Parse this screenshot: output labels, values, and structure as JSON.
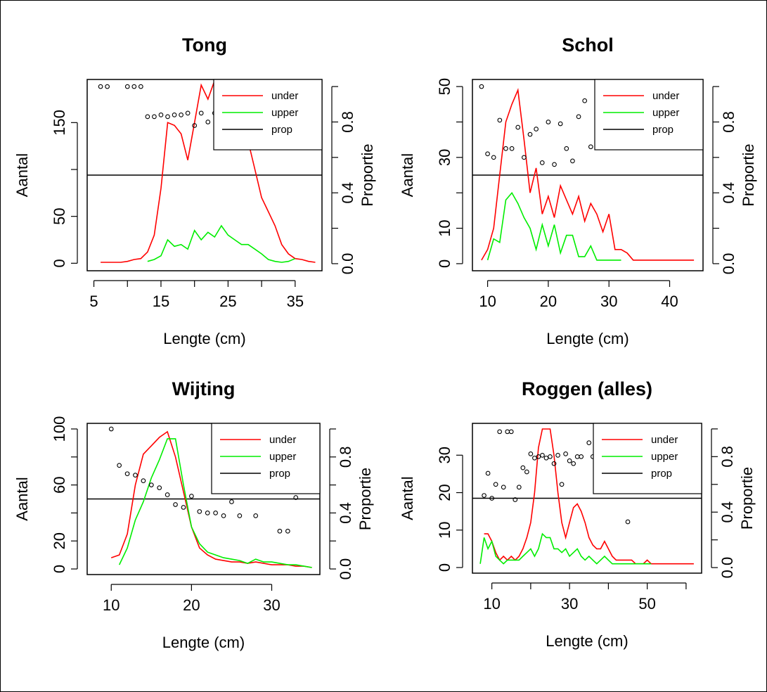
{
  "chart_data": [
    {
      "type": "line",
      "title": "Tong",
      "xlabel": "Lengte (cm)",
      "ylabel": "Aantal",
      "y2label": "Proportie",
      "xlim": [
        4,
        39
      ],
      "ylim": [
        -8,
        196
      ],
      "y2lim": [
        -0.04,
        1.04
      ],
      "xticks": [
        5,
        15,
        25,
        35
      ],
      "xminor": [
        10,
        20,
        30
      ],
      "yticks": [
        0,
        50,
        150
      ],
      "ymajor": [
        0,
        50,
        100,
        150
      ],
      "y2ticks": [
        0.0,
        0.4,
        0.8
      ],
      "y2major": [
        0.0,
        0.2,
        0.4,
        0.6,
        0.8,
        1.0
      ],
      "prop_line": 0.5,
      "legend": {
        "position": "top-right",
        "entries": [
          {
            "name": "under",
            "color": "#ff0000"
          },
          {
            "name": "upper",
            "color": "#00ee00"
          },
          {
            "name": "prop",
            "color": "#000000"
          }
        ]
      },
      "series": [
        {
          "name": "under",
          "color": "#ff0000",
          "x": [
            6,
            7,
            8,
            9,
            10,
            11,
            12,
            13,
            14,
            15,
            16,
            17,
            18,
            19,
            20,
            21,
            22,
            23,
            24,
            25,
            26,
            27,
            28,
            29,
            30,
            31,
            32,
            33,
            34,
            35,
            36,
            37,
            38
          ],
          "y": [
            1,
            1,
            1,
            1,
            2,
            4,
            5,
            12,
            30,
            80,
            150,
            147,
            138,
            110,
            150,
            190,
            175,
            195,
            193,
            185,
            165,
            150,
            130,
            100,
            70,
            55,
            40,
            20,
            10,
            5,
            4,
            2,
            1
          ]
        },
        {
          "name": "upper",
          "color": "#00ee00",
          "x": [
            13,
            14,
            15,
            16,
            17,
            18,
            19,
            20,
            21,
            22,
            23,
            24,
            25,
            26,
            27,
            28,
            29,
            30,
            31,
            32,
            33,
            34,
            35
          ],
          "y": [
            2,
            4,
            8,
            25,
            18,
            20,
            15,
            35,
            25,
            33,
            28,
            40,
            30,
            25,
            20,
            20,
            15,
            10,
            4,
            2,
            1,
            2,
            5
          ]
        }
      ],
      "points": {
        "x": [
          6,
          7,
          10,
          11,
          12,
          13,
          14,
          15,
          16,
          17,
          18,
          19,
          20,
          21,
          22,
          23,
          24
        ],
        "y": [
          1.0,
          1.0,
          1.0,
          1.0,
          1.0,
          0.83,
          0.83,
          0.84,
          0.83,
          0.84,
          0.84,
          0.85,
          0.78,
          0.85,
          0.8,
          0.85,
          0.93
        ]
      }
    },
    {
      "type": "line",
      "title": "Schol",
      "xlabel": "Lengte (cm)",
      "ylabel": "Aantal",
      "y2label": "Proportie",
      "xlim": [
        7.5,
        45.5
      ],
      "ylim": [
        -2,
        52
      ],
      "y2lim": [
        -0.04,
        1.04
      ],
      "xticks": [
        10,
        20,
        30,
        40
      ],
      "yticks": [
        0,
        10,
        30,
        50
      ],
      "ymajor": [
        0,
        10,
        20,
        30,
        40,
        50
      ],
      "y2ticks": [
        0.0,
        0.4,
        0.8
      ],
      "y2major": [
        0.0,
        0.2,
        0.4,
        0.6,
        0.8,
        1.0
      ],
      "prop_line": 0.5,
      "legend": {
        "position": "top-right",
        "entries": [
          {
            "name": "under",
            "color": "#ff0000"
          },
          {
            "name": "upper",
            "color": "#00ee00"
          },
          {
            "name": "prop",
            "color": "#000000"
          }
        ]
      },
      "series": [
        {
          "name": "under",
          "color": "#ff0000",
          "x": [
            9,
            10,
            11,
            12,
            13,
            14,
            15,
            16,
            17,
            18,
            19,
            20,
            21,
            22,
            23,
            24,
            25,
            26,
            27,
            28,
            29,
            30,
            31,
            32,
            33,
            34,
            35,
            36,
            37,
            38,
            39,
            40,
            41,
            42,
            43,
            44
          ],
          "y": [
            1,
            4,
            10,
            25,
            40,
            45,
            49,
            35,
            20,
            27,
            14,
            19,
            13,
            22,
            18,
            14,
            19,
            12,
            17,
            14,
            9,
            14,
            4,
            4,
            3,
            1,
            1,
            1,
            1,
            1,
            1,
            1,
            1,
            1,
            1,
            1
          ]
        },
        {
          "name": "upper",
          "color": "#00ee00",
          "x": [
            10,
            11,
            12,
            13,
            14,
            15,
            16,
            17,
            18,
            19,
            20,
            21,
            22,
            23,
            24,
            25,
            26,
            27,
            28,
            29,
            30,
            31,
            32
          ],
          "y": [
            1,
            7,
            6,
            18,
            20,
            17,
            13,
            10,
            4,
            11,
            5,
            11,
            3,
            8,
            8,
            2,
            2,
            5,
            1,
            1,
            1,
            1,
            1
          ]
        }
      ],
      "points": {
        "x": [
          9,
          10,
          11,
          12,
          13,
          14,
          15,
          16,
          17,
          18,
          19,
          20,
          21,
          22,
          23,
          24,
          25,
          26,
          27,
          28
        ],
        "y": [
          1.0,
          0.62,
          0.6,
          0.81,
          0.65,
          0.65,
          0.77,
          0.6,
          0.73,
          0.76,
          0.57,
          0.8,
          0.56,
          0.79,
          0.65,
          0.58,
          0.83,
          0.92,
          0.66,
          0.83
        ]
      }
    },
    {
      "type": "line",
      "title": "Wijting",
      "xlabel": "Lengte (cm)",
      "ylabel": "Aantal",
      "y2label": "Proportie",
      "xlim": [
        7,
        36
      ],
      "ylim": [
        -4,
        104
      ],
      "y2lim": [
        -0.04,
        1.04
      ],
      "xticks": [
        10,
        20,
        30
      ],
      "yticks": [
        0,
        20,
        60,
        100
      ],
      "ymajor": [
        0,
        20,
        40,
        60,
        80,
        100
      ],
      "y2ticks": [
        0.0,
        0.4,
        0.8
      ],
      "y2major": [
        0.0,
        0.2,
        0.4,
        0.6,
        0.8,
        1.0
      ],
      "prop_line": 0.5,
      "legend": {
        "position": "top-right",
        "entries": [
          {
            "name": "under",
            "color": "#ff0000"
          },
          {
            "name": "upper",
            "color": "#00ee00"
          },
          {
            "name": "prop",
            "color": "#000000"
          }
        ]
      },
      "series": [
        {
          "name": "under",
          "color": "#ff0000",
          "x": [
            10,
            11,
            12,
            13,
            14,
            15,
            16,
            17,
            18,
            19,
            20,
            21,
            22,
            23,
            24,
            25,
            26,
            27,
            28,
            29,
            30,
            31,
            32,
            33,
            34,
            35
          ],
          "y": [
            8,
            10,
            25,
            60,
            82,
            88,
            94,
            98,
            80,
            55,
            30,
            15,
            10,
            7,
            6,
            5,
            5,
            4,
            5,
            4,
            3,
            3,
            3,
            2,
            2,
            1
          ]
        },
        {
          "name": "upper",
          "color": "#00ee00",
          "x": [
            11,
            12,
            13,
            14,
            15,
            16,
            17,
            18,
            19,
            20,
            21,
            22,
            23,
            24,
            25,
            26,
            27,
            28,
            29,
            30,
            31,
            32,
            33,
            34,
            35
          ],
          "y": [
            3,
            15,
            35,
            48,
            65,
            78,
            93,
            93,
            60,
            30,
            18,
            12,
            10,
            8,
            7,
            6,
            4,
            7,
            5,
            5,
            4,
            3,
            3,
            2,
            1
          ]
        }
      ],
      "points": {
        "x": [
          10,
          11,
          12,
          13,
          14,
          15,
          16,
          17,
          18,
          19,
          20,
          21,
          22,
          23,
          24,
          25,
          26,
          28,
          31,
          32,
          33
        ],
        "y": [
          1.0,
          0.74,
          0.68,
          0.67,
          0.63,
          0.6,
          0.58,
          0.53,
          0.46,
          0.44,
          0.52,
          0.41,
          0.4,
          0.4,
          0.38,
          0.48,
          0.38,
          0.38,
          0.27,
          0.27,
          0.51
        ]
      }
    },
    {
      "type": "line",
      "title": "Roggen (alles)",
      "xlabel": "Lengte (cm)",
      "ylabel": "Aantal",
      "y2label": "Proportie",
      "xlim": [
        5,
        64
      ],
      "ylim": [
        -1.5,
        38.5
      ],
      "y2lim": [
        -0.04,
        1.04
      ],
      "xticks": [
        10,
        30,
        50
      ],
      "xminor": [
        20,
        40,
        60
      ],
      "yticks": [
        0,
        10,
        20,
        30
      ],
      "ymajor": [
        0,
        10,
        20,
        30
      ],
      "y2ticks": [
        0.0,
        0.4,
        0.8
      ],
      "y2major": [
        0.0,
        0.2,
        0.4,
        0.6,
        0.8,
        1.0
      ],
      "prop_line": 0.5,
      "legend": {
        "position": "top-right",
        "entries": [
          {
            "name": "under",
            "color": "#ff0000"
          },
          {
            "name": "upper",
            "color": "#00ee00"
          },
          {
            "name": "prop",
            "color": "#000000"
          }
        ]
      },
      "series": [
        {
          "name": "under",
          "color": "#ff0000",
          "x": [
            8,
            9,
            10,
            11,
            12,
            13,
            14,
            15,
            16,
            17,
            18,
            19,
            20,
            21,
            22,
            23,
            24,
            25,
            26,
            27,
            28,
            29,
            30,
            31,
            32,
            33,
            34,
            35,
            36,
            37,
            38,
            39,
            40,
            41,
            42,
            43,
            44,
            45,
            46,
            47,
            48,
            49,
            50,
            51,
            52,
            53,
            54,
            55,
            56,
            57,
            58,
            59,
            60,
            61,
            62
          ],
          "y": [
            9,
            9,
            7,
            4,
            2,
            3,
            2,
            3,
            2,
            3,
            5,
            8,
            12,
            20,
            32,
            37,
            37,
            37,
            30,
            20,
            12,
            8,
            12,
            16,
            17,
            15,
            12,
            8,
            6,
            5,
            5,
            7,
            5,
            3,
            2,
            2,
            2,
            2,
            2,
            1,
            1,
            1,
            2,
            1,
            1,
            1,
            1,
            1,
            1,
            1,
            1,
            1,
            1,
            1,
            1
          ]
        },
        {
          "name": "upper",
          "color": "#00ee00",
          "x": [
            7,
            8,
            9,
            10,
            11,
            12,
            13,
            14,
            15,
            16,
            17,
            18,
            19,
            20,
            21,
            22,
            23,
            24,
            25,
            26,
            27,
            28,
            29,
            30,
            31,
            32,
            33,
            34,
            35,
            36,
            37,
            38,
            39,
            40,
            41,
            42,
            43,
            44,
            45,
            46,
            47,
            48,
            49,
            50,
            51
          ],
          "y": [
            1,
            8,
            5,
            7,
            3,
            2,
            1,
            2,
            2,
            2,
            2,
            3,
            4,
            5,
            3,
            5,
            9,
            8,
            8,
            5,
            5,
            4,
            5,
            3,
            4,
            5,
            3,
            2,
            3,
            2,
            1,
            2,
            3,
            2,
            1,
            1,
            1,
            1,
            1,
            1,
            1,
            1,
            1,
            1,
            1
          ]
        }
      ],
      "points": {
        "x": [
          8,
          9,
          10,
          11,
          12,
          13,
          14,
          15,
          16,
          17,
          18,
          19,
          20,
          21,
          22,
          23,
          24,
          25,
          26,
          27,
          28,
          29,
          30,
          31,
          32,
          33,
          35,
          36,
          37,
          38,
          45
        ],
        "y": [
          0.52,
          0.68,
          0.5,
          0.6,
          0.98,
          0.58,
          0.98,
          0.98,
          0.49,
          0.58,
          0.72,
          0.69,
          0.82,
          0.79,
          0.8,
          0.81,
          0.79,
          0.8,
          0.75,
          0.81,
          0.6,
          0.82,
          0.77,
          0.75,
          0.8,
          0.8,
          0.9,
          0.8,
          0.82,
          0.61,
          0.33
        ]
      }
    }
  ]
}
